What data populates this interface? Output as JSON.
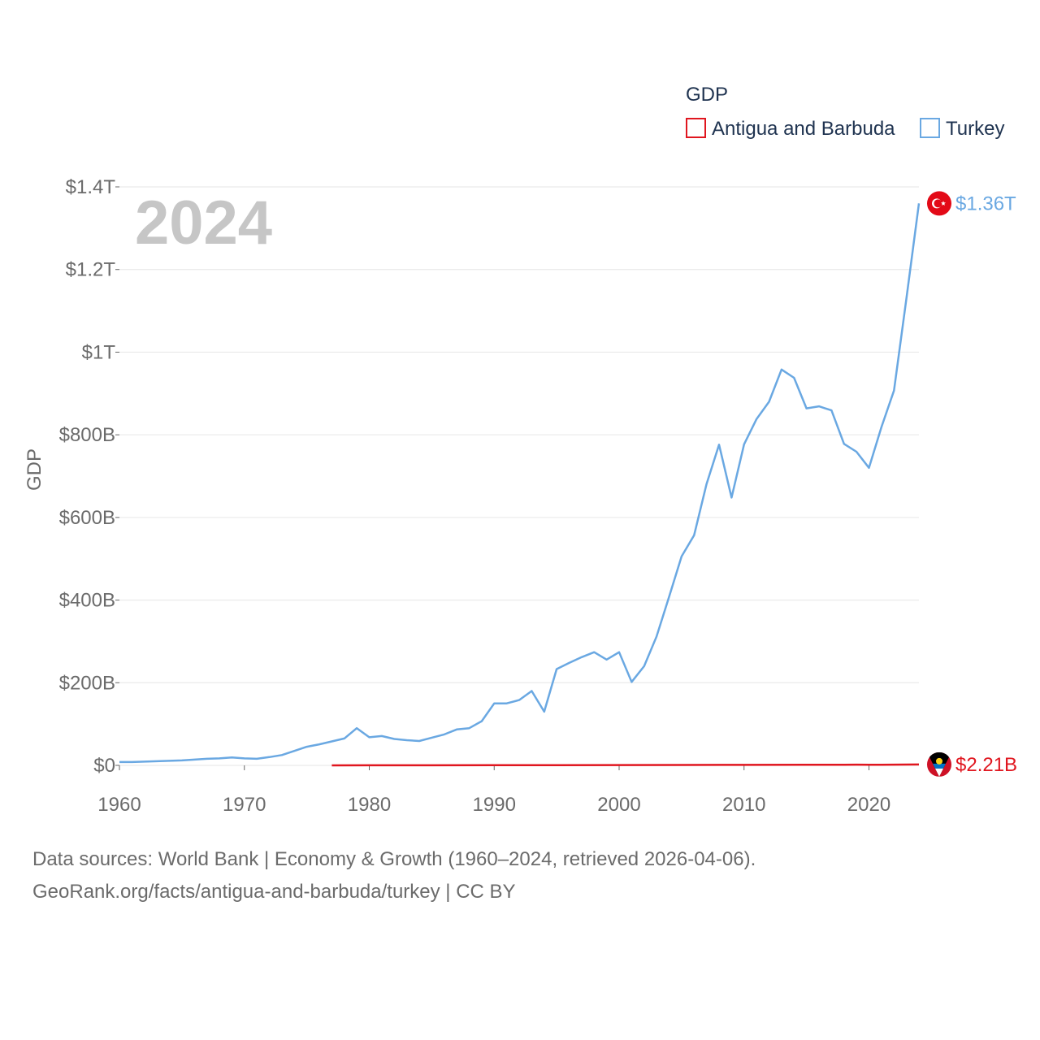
{
  "chart_data": {
    "type": "line",
    "legend_title": "GDP",
    "year_label": "2024",
    "ylabel": "GDP",
    "xlim": [
      1960,
      2024
    ],
    "ylim": [
      0,
      1400
    ],
    "y_unit": "billions USD",
    "x_ticks": [
      1960,
      1970,
      1980,
      1990,
      2000,
      2010,
      2020
    ],
    "y_ticks": [
      {
        "value": 0,
        "label": "$0"
      },
      {
        "value": 200,
        "label": "$200B"
      },
      {
        "value": 400,
        "label": "$400B"
      },
      {
        "value": 600,
        "label": "$600B"
      },
      {
        "value": 800,
        "label": "$800B"
      },
      {
        "value": 1000,
        "label": "$1T"
      },
      {
        "value": 1200,
        "label": "$1.2T"
      },
      {
        "value": 1400,
        "label": "$1.4T"
      }
    ],
    "series": [
      {
        "name": "Antigua and Barbuda",
        "color": "#e0161f",
        "end_label": "$2.21B",
        "flag_icon": "antigua-flag-icon",
        "x": [
          1977,
          1980,
          1985,
          1990,
          1995,
          2000,
          2005,
          2010,
          2015,
          2018,
          2019,
          2020,
          2021,
          2022,
          2023,
          2024
        ],
        "values": [
          0.08,
          0.13,
          0.25,
          0.46,
          0.55,
          0.83,
          1.0,
          1.15,
          1.34,
          1.6,
          1.7,
          1.4,
          1.5,
          1.8,
          2.0,
          2.21
        ]
      },
      {
        "name": "Turkey",
        "color": "#6aa8e2",
        "end_label": "$1.36T",
        "flag_icon": "turkey-flag-icon",
        "x": [
          1960,
          1961,
          1962,
          1963,
          1964,
          1965,
          1966,
          1967,
          1968,
          1969,
          1970,
          1971,
          1972,
          1973,
          1974,
          1975,
          1976,
          1977,
          1978,
          1979,
          1980,
          1981,
          1982,
          1983,
          1984,
          1985,
          1986,
          1987,
          1988,
          1989,
          1990,
          1991,
          1992,
          1993,
          1994,
          1995,
          1996,
          1997,
          1998,
          1999,
          2000,
          2001,
          2002,
          2003,
          2004,
          2005,
          2006,
          2007,
          2008,
          2009,
          2010,
          2011,
          2012,
          2013,
          2014,
          2015,
          2016,
          2017,
          2018,
          2019,
          2020,
          2021,
          2022,
          2023,
          2024
        ],
        "values": [
          8,
          8,
          9,
          10,
          11,
          12,
          14,
          16,
          17,
          19,
          17,
          16,
          20,
          25,
          35,
          45,
          51,
          58,
          65,
          90,
          68,
          71,
          64,
          61,
          59,
          67,
          75,
          87,
          90,
          107,
          150,
          150,
          158,
          180,
          130,
          233,
          248,
          262,
          274,
          256,
          274,
          202,
          240,
          312,
          408,
          506,
          557,
          681,
          776,
          648,
          777,
          838,
          880,
          958,
          938,
          864,
          869,
          859,
          778,
          759,
          720,
          819,
          907,
          1130,
          1360
        ]
      }
    ]
  },
  "footer": {
    "line1": "Data sources: World Bank | Economy & Growth (1960–2024, retrieved 2026-04-06).",
    "line2": "GeoRank.org/facts/antigua-and-barbuda/turkey | CC BY"
  }
}
